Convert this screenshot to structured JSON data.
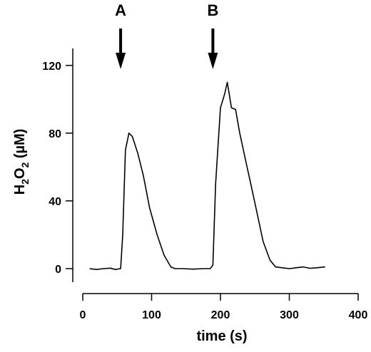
{
  "chart_data": {
    "type": "line",
    "xlabel": "time (s)",
    "ylabel": {
      "main": "H",
      "sub1": "2",
      "mid": "O",
      "sub2": "2",
      "unit": " (µM)"
    },
    "xlim": [
      0,
      400
    ],
    "ylim": [
      -8,
      130
    ],
    "xticks": [
      0,
      100,
      200,
      300,
      400
    ],
    "yticks": [
      0,
      40,
      80,
      120
    ],
    "x_tick_labels": [
      "0",
      "100",
      "200",
      "300",
      "400"
    ],
    "y_tick_labels": [
      "0",
      "40",
      "80",
      "120"
    ],
    "grid": false,
    "series": [
      {
        "x": [
          10,
          20,
          30,
          40,
          47,
          55,
          58,
          62,
          67,
          72,
          80,
          88,
          97,
          108,
          118,
          128,
          134,
          145,
          160,
          175,
          185,
          189,
          193,
          200,
          206,
          210,
          216,
          222,
          228,
          236,
          244,
          252,
          262,
          272,
          280,
          290,
          300,
          310,
          320,
          330,
          340,
          352
        ],
        "y": [
          0,
          -0.5,
          0,
          0.3,
          -0.5,
          0,
          20,
          70,
          80,
          78,
          68,
          55,
          36,
          20,
          8,
          1,
          0,
          0,
          -0.3,
          0,
          0,
          2,
          50,
          95,
          103,
          110,
          95,
          94,
          80,
          65,
          50,
          35,
          16,
          5,
          1,
          0.5,
          0,
          0.5,
          1,
          0.2,
          0.5,
          1
        ]
      }
    ],
    "annotations": [
      {
        "text": "A",
        "x": 55
      },
      {
        "text": "B",
        "x": 189
      }
    ]
  }
}
